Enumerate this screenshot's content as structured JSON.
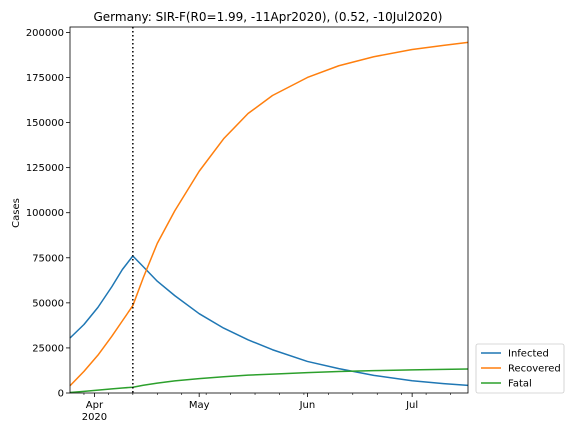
{
  "chart_data": {
    "type": "line",
    "title": "Germany: SIR-F(R0=1.99, -11Apr2020), (0.52, -10Jul2020)",
    "xlabel": "",
    "ylabel": "Cases",
    "x_range": [
      "2020-03-25",
      "2020-07-17"
    ],
    "ylim": [
      0,
      203000
    ],
    "y_ticks": [
      0,
      25000,
      50000,
      75000,
      100000,
      125000,
      150000,
      175000,
      200000
    ],
    "x_ticks": [
      {
        "date": "2020-04-01",
        "label": "Apr",
        "sublabel": "2020"
      },
      {
        "date": "2020-05-01",
        "label": "May",
        "sublabel": ""
      },
      {
        "date": "2020-06-01",
        "label": "Jun",
        "sublabel": ""
      },
      {
        "date": "2020-07-01",
        "label": "Jul",
        "sublabel": ""
      }
    ],
    "vline": {
      "date": "2020-04-12",
      "style": "dotted",
      "color": "#000000"
    },
    "legend": {
      "placement": "lower-right-outside"
    },
    "series": [
      {
        "name": "Infected",
        "color": "#1f77b4",
        "points": [
          [
            "2020-03-25",
            30500
          ],
          [
            "2020-03-29",
            38000
          ],
          [
            "2020-04-02",
            47500
          ],
          [
            "2020-04-06",
            59000
          ],
          [
            "2020-04-09",
            68500
          ],
          [
            "2020-04-12",
            76000
          ],
          [
            "2020-04-15",
            70000
          ],
          [
            "2020-04-19",
            62000
          ],
          [
            "2020-04-24",
            54000
          ],
          [
            "2020-05-01",
            44000
          ],
          [
            "2020-05-08",
            36000
          ],
          [
            "2020-05-15",
            29500
          ],
          [
            "2020-05-22",
            24000
          ],
          [
            "2020-06-01",
            17500
          ],
          [
            "2020-06-10",
            13500
          ],
          [
            "2020-06-20",
            9800
          ],
          [
            "2020-07-01",
            6800
          ],
          [
            "2020-07-10",
            5200
          ],
          [
            "2020-07-17",
            4200
          ]
        ]
      },
      {
        "name": "Recovered",
        "color": "#ff7f0e",
        "points": [
          [
            "2020-03-25",
            4000
          ],
          [
            "2020-03-29",
            12000
          ],
          [
            "2020-04-02",
            21000
          ],
          [
            "2020-04-06",
            31500
          ],
          [
            "2020-04-09",
            40000
          ],
          [
            "2020-04-12",
            48500
          ],
          [
            "2020-04-15",
            64000
          ],
          [
            "2020-04-19",
            83000
          ],
          [
            "2020-04-24",
            101000
          ],
          [
            "2020-05-01",
            123000
          ],
          [
            "2020-05-08",
            141000
          ],
          [
            "2020-05-15",
            155000
          ],
          [
            "2020-05-22",
            165000
          ],
          [
            "2020-06-01",
            175000
          ],
          [
            "2020-06-10",
            181500
          ],
          [
            "2020-06-20",
            186500
          ],
          [
            "2020-07-01",
            190500
          ],
          [
            "2020-07-10",
            192800
          ],
          [
            "2020-07-17",
            194500
          ]
        ]
      },
      {
        "name": "Fatal",
        "color": "#2ca02c",
        "points": [
          [
            "2020-03-25",
            300
          ],
          [
            "2020-03-29",
            900
          ],
          [
            "2020-04-02",
            1600
          ],
          [
            "2020-04-06",
            2300
          ],
          [
            "2020-04-09",
            2800
          ],
          [
            "2020-04-12",
            3200
          ],
          [
            "2020-04-15",
            4300
          ],
          [
            "2020-04-19",
            5500
          ],
          [
            "2020-04-24",
            6700
          ],
          [
            "2020-05-01",
            8000
          ],
          [
            "2020-05-08",
            9000
          ],
          [
            "2020-05-15",
            9900
          ],
          [
            "2020-05-22",
            10500
          ],
          [
            "2020-06-01",
            11300
          ],
          [
            "2020-06-10",
            11900
          ],
          [
            "2020-06-20",
            12400
          ],
          [
            "2020-07-01",
            12800
          ],
          [
            "2020-07-10",
            13100
          ],
          [
            "2020-07-17",
            13300
          ]
        ]
      }
    ]
  }
}
